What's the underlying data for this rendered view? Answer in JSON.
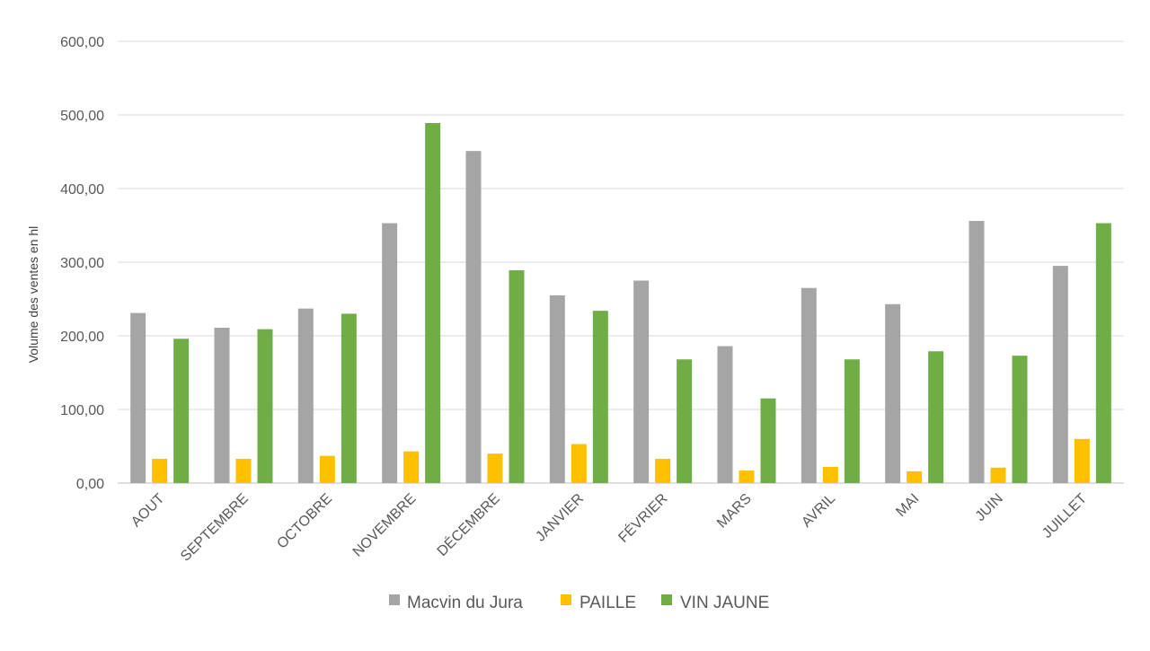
{
  "chart_data": {
    "type": "bar",
    "title": "",
    "xlabel": "",
    "ylabel": "Volume des ventes en hl",
    "ylim": [
      0,
      600
    ],
    "yticks": [
      0,
      100,
      200,
      300,
      400,
      500,
      600
    ],
    "ytick_labels": [
      "0,00",
      "100,00",
      "200,00",
      "300,00",
      "400,00",
      "500,00",
      "600,00"
    ],
    "grid": true,
    "legend_position": "bottom",
    "categories": [
      "AOUT",
      "SEPTEMBRE",
      "OCTOBRE",
      "NOVEMBRE",
      "DÉCEMBRE",
      "JANVIER",
      "FÉVRIER",
      "MARS",
      "AVRIL",
      "MAI",
      "JUIN",
      "JUILLET"
    ],
    "series": [
      {
        "name": "Macvin du Jura",
        "color": "#a5a5a5",
        "values": [
          231,
          211,
          237,
          353,
          451,
          255,
          275,
          186,
          265,
          243,
          356,
          295
        ]
      },
      {
        "name": "PAILLE",
        "color": "#ffc000",
        "values": [
          33,
          33,
          37,
          43,
          40,
          53,
          33,
          17,
          22,
          16,
          21,
          60
        ]
      },
      {
        "name": "VIN JAUNE",
        "color": "#70ad47",
        "values": [
          196,
          209,
          230,
          489,
          289,
          234,
          168,
          115,
          168,
          179,
          173,
          353
        ]
      }
    ]
  }
}
